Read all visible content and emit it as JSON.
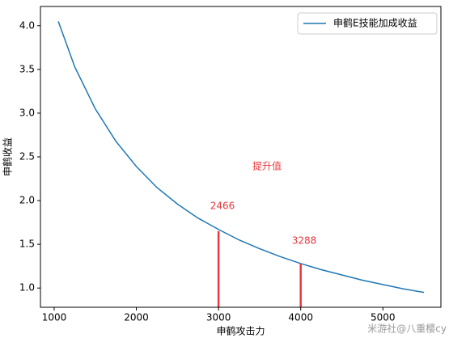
{
  "chart_data": {
    "type": "line",
    "x": [
      1050,
      1250,
      1500,
      1750,
      2000,
      2250,
      2500,
      2750,
      3000,
      3250,
      3500,
      3750,
      4000,
      4250,
      4500,
      4750,
      5000,
      5250,
      5500
    ],
    "series": [
      {
        "name": "申鹤E技能加成收益",
        "color": "#1f77b4",
        "values": [
          4.05,
          3.53,
          3.05,
          2.68,
          2.39,
          2.15,
          1.96,
          1.8,
          1.67,
          1.55,
          1.45,
          1.36,
          1.28,
          1.21,
          1.15,
          1.09,
          1.04,
          0.99,
          0.95
        ]
      }
    ],
    "xlabel": "申鹤攻击力",
    "ylabel": "申鹤收益",
    "xlim": [
      833,
      5706
    ],
    "ylim": [
      0.78,
      4.22
    ],
    "xticks": [
      1000,
      2000,
      3000,
      4000,
      5000
    ],
    "yticks": [
      {
        "value": 1,
        "label": "1.0"
      },
      {
        "value": 1.5,
        "label": "1.5"
      },
      {
        "value": 2,
        "label": "2.0"
      },
      {
        "value": 2.5,
        "label": "2.5"
      },
      {
        "value": 3,
        "label": "3.0"
      },
      {
        "value": 3.5,
        "label": "3.5"
      },
      {
        "value": 4,
        "label": "4.0"
      }
    ],
    "legend": "upper right",
    "vlines": [
      {
        "x": 3000,
        "y": 1.65,
        "color": "#e8383d"
      },
      {
        "x": 4000,
        "y": 1.28,
        "color": "#e8383d"
      }
    ],
    "annotations": [
      "提升值",
      "2466",
      "3288"
    ],
    "watermark": "米游社@八重樱cy"
  }
}
